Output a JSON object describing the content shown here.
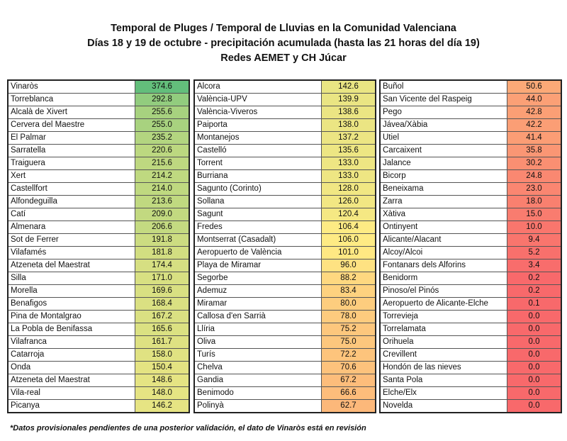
{
  "header": {
    "line1": "Temporal de Pluges / Temporal de Lluvias en la Comunidad Valenciana",
    "line2": "Días 18 y 19 de octubre - precipitación acumulada (hasta las 21 horas del día 19)",
    "line3": "Redes AEMET y CH Júcar"
  },
  "color_scale": {
    "min": "#f8696b",
    "mid": "#ffeb84",
    "max": "#63be7b"
  },
  "tables": [
    [
      [
        "Vinaròs",
        "374.6"
      ],
      [
        "Torreblanca",
        "292.8"
      ],
      [
        "Alcalà de Xivert",
        "255.6"
      ],
      [
        "Cervera del Maestre",
        "255.0"
      ],
      [
        "El Palmar",
        "235.2"
      ],
      [
        "Sarratella",
        "220.6"
      ],
      [
        "Traiguera",
        "215.6"
      ],
      [
        "Xert",
        "214.2"
      ],
      [
        "Castellfort",
        "214.0"
      ],
      [
        "Alfondeguilla",
        "213.6"
      ],
      [
        "Catí",
        "209.0"
      ],
      [
        "Almenara",
        "206.6"
      ],
      [
        "Sot de Ferrer",
        "191.8"
      ],
      [
        "Vilafamés",
        "181.8"
      ],
      [
        "Atzeneta del Maestrat",
        "174.4"
      ],
      [
        "Silla",
        "171.0"
      ],
      [
        "Morella",
        "169.6"
      ],
      [
        "Benafigos",
        "168.4"
      ],
      [
        "Pina de Montalgrao",
        "167.2"
      ],
      [
        "La Pobla de Benifassa",
        "165.6"
      ],
      [
        "Vilafranca",
        "161.7"
      ],
      [
        "Catarroja",
        "158.0"
      ],
      [
        "Onda",
        "150.4"
      ],
      [
        "Atzeneta del Maestrat",
        "148.6"
      ],
      [
        "Vila-real",
        "148.0"
      ],
      [
        "Picanya",
        "146.2"
      ]
    ],
    [
      [
        "Alcora",
        "142.6"
      ],
      [
        "València-UPV",
        "139.9"
      ],
      [
        "València-Viveros",
        "138.6"
      ],
      [
        "Paiporta",
        "138.0"
      ],
      [
        "Montanejos",
        "137.2"
      ],
      [
        "Castelló",
        "135.6"
      ],
      [
        "Torrent",
        "133.0"
      ],
      [
        "Burriana",
        "133.0"
      ],
      [
        "Sagunto (Corinto)",
        "128.0"
      ],
      [
        "Sollana",
        "126.0"
      ],
      [
        "Sagunt",
        "120.4"
      ],
      [
        "Fredes",
        "106.4"
      ],
      [
        "Montserrat (Casadalt)",
        "106.0"
      ],
      [
        "Aeropuerto de València",
        "101.0"
      ],
      [
        "Playa de Miramar",
        "96.0"
      ],
      [
        "Segorbe",
        "88.2"
      ],
      [
        "Ademuz",
        "83.4"
      ],
      [
        "Miramar",
        "80.0"
      ],
      [
        "Callosa d'en Sarrià",
        "78.0"
      ],
      [
        "Llíria",
        "75.2"
      ],
      [
        "Oliva",
        "75.0"
      ],
      [
        "Turís",
        "72.2"
      ],
      [
        "Chelva",
        "70.6"
      ],
      [
        "Gandia",
        "67.2"
      ],
      [
        "Benimodo",
        "66.6"
      ],
      [
        "Polinyà",
        "62.7"
      ]
    ],
    [
      [
        "Buñol",
        "50.6"
      ],
      [
        "San Vicente del Raspeig",
        "44.0"
      ],
      [
        "Pego",
        "42.8"
      ],
      [
        "Jávea/Xàbia",
        "42.2"
      ],
      [
        "Utiel",
        "41.4"
      ],
      [
        "Carcaixent",
        "35.8"
      ],
      [
        "Jalance",
        "30.2"
      ],
      [
        "Bicorp",
        "24.8"
      ],
      [
        "Beneixama",
        "23.0"
      ],
      [
        "Zarra",
        "18.0"
      ],
      [
        "Xàtiva",
        "15.0"
      ],
      [
        "Ontinyent",
        "10.0"
      ],
      [
        "Alicante/Alacant",
        "9.4"
      ],
      [
        "Alcoy/Alcoi",
        "5.2"
      ],
      [
        "Fontanars dels Alforins",
        "3.4"
      ],
      [
        "Benidorm",
        "0.2"
      ],
      [
        "Pinoso/el Pinós",
        "0.2"
      ],
      [
        "Aeropuerto de Alicante-Elche",
        "0.1"
      ],
      [
        "Torrevieja",
        "0.0"
      ],
      [
        "Torrelamata",
        "0.0"
      ],
      [
        "Orihuela",
        "0.0"
      ],
      [
        "Crevillent",
        "0.0"
      ],
      [
        "Hondón de las nieves",
        "0.0"
      ],
      [
        "Santa Pola",
        "0.0"
      ],
      [
        "Elche/Elx",
        "0.0"
      ],
      [
        "Novelda",
        "0.0"
      ]
    ]
  ],
  "footnote": "*Datos provisionales pendientes de una posterior validación, el dato de Vinaròs está en revisión"
}
